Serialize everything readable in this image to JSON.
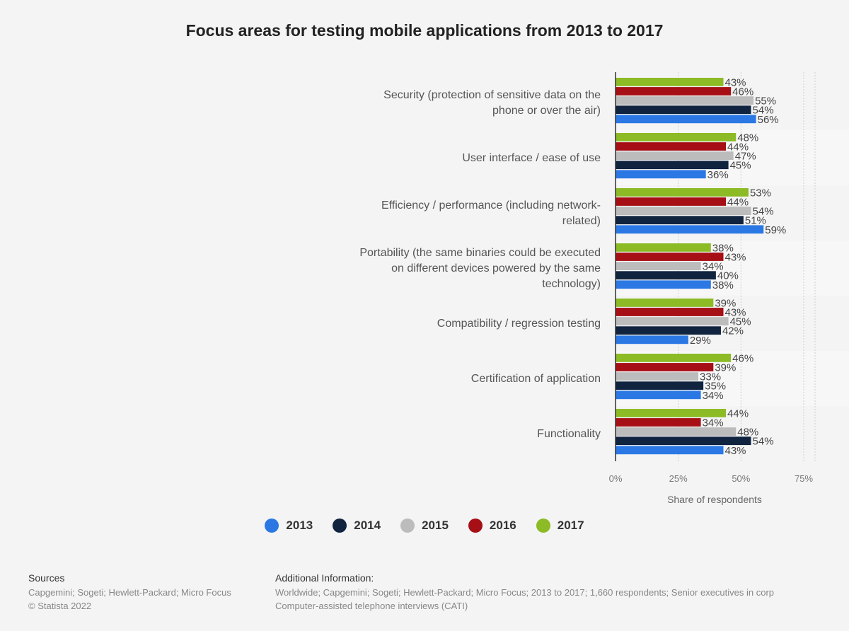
{
  "chart_data": {
    "type": "bar",
    "orientation": "horizontal",
    "title": "Focus areas for testing mobile applications from 2013 to 2017",
    "xlabel": "Share of respondents",
    "xlim": [
      0,
      75
    ],
    "xticks": [
      "0%",
      "25%",
      "50%",
      "75%"
    ],
    "value_suffix": "%",
    "grid": true,
    "legend_position": "bottom",
    "categories": [
      [
        "Security (protection of sensitive data on the",
        "phone or over the air)"
      ],
      [
        "User interface / ease of use"
      ],
      [
        "Efficiency / performance (including network-",
        "related)"
      ],
      [
        "Portability (the same binaries could be executed",
        "on different devices powered by the same",
        "technology)"
      ],
      [
        "Compatibility / regression testing"
      ],
      [
        "Certification of application"
      ],
      [
        "Functionality"
      ]
    ],
    "series": [
      {
        "name": "2017",
        "color": "#8cbb26",
        "values": [
          43,
          48,
          53,
          38,
          39,
          46,
          44
        ]
      },
      {
        "name": "2016",
        "color": "#a50f15",
        "values": [
          46,
          44,
          44,
          43,
          43,
          39,
          34
        ]
      },
      {
        "name": "2015",
        "color": "#bcbcbc",
        "values": [
          55,
          47,
          54,
          34,
          45,
          33,
          48
        ]
      },
      {
        "name": "2014",
        "color": "#10233f",
        "values": [
          54,
          45,
          51,
          40,
          42,
          35,
          54
        ]
      },
      {
        "name": "2013",
        "color": "#2b78e4",
        "values": [
          56,
          36,
          59,
          38,
          29,
          34,
          43
        ]
      }
    ],
    "legend_order": [
      "2013",
      "2014",
      "2015",
      "2016",
      "2017"
    ]
  },
  "legend": [
    {
      "label": "2013",
      "color": "#2b78e4"
    },
    {
      "label": "2014",
      "color": "#10233f"
    },
    {
      "label": "2015",
      "color": "#bcbcbc"
    },
    {
      "label": "2016",
      "color": "#a50f15"
    },
    {
      "label": "2017",
      "color": "#8cbb26"
    }
  ],
  "footer": {
    "sources_heading": "Sources",
    "sources_line1": "Capgemini; Sogeti; Hewlett-Packard; Micro Focus",
    "sources_line2": "© Statista 2022",
    "additional_heading": "Additional Information:",
    "additional_line1": "Worldwide; Capgemini; Sogeti; Hewlett-Packard; Micro Focus; 2013 to 2017; 1,660 respondents; Senior executives in corp",
    "additional_line2": "Computer-assisted telephone interviews (CATI)"
  }
}
